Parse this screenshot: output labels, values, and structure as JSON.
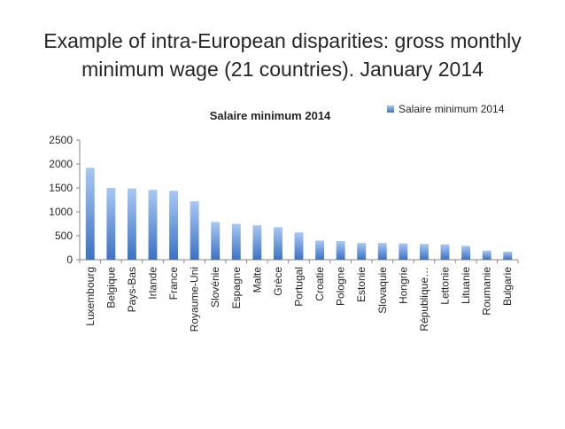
{
  "slide": {
    "title": "Example of intra-European disparities: gross monthly minimum wage (21 countries). January 2014"
  },
  "colors": {
    "bar_top": "#a9c8f2",
    "bar_bottom": "#3c72c4",
    "axis": "#868686"
  },
  "chart_data": {
    "type": "bar",
    "title": "Salaire minimum 2014",
    "xlabel": "",
    "ylabel": "",
    "ylim": [
      0,
      2500
    ],
    "yticks": [
      0,
      500,
      1000,
      1500,
      2000,
      2500
    ],
    "grid": false,
    "legend_position": "top-right",
    "categories": [
      "Luxembourg",
      "Belgique",
      "Pays-Bas",
      "Irlande",
      "France",
      "Royaume-Uni",
      "Slovénie",
      "Espagne",
      "Malte",
      "Grèce",
      "Portugal",
      "Croatie",
      "Pologne",
      "Estonie",
      "Slovaquie",
      "Hongrie",
      "République…",
      "Lettonie",
      "Lituanie",
      "Roumanie",
      "Bulgarie"
    ],
    "series": [
      {
        "name": "Salaire minimum 2014",
        "values": [
          1920,
          1500,
          1490,
          1460,
          1440,
          1220,
          790,
          750,
          720,
          680,
          570,
          400,
          390,
          350,
          350,
          340,
          330,
          320,
          290,
          190,
          170
        ]
      }
    ]
  }
}
